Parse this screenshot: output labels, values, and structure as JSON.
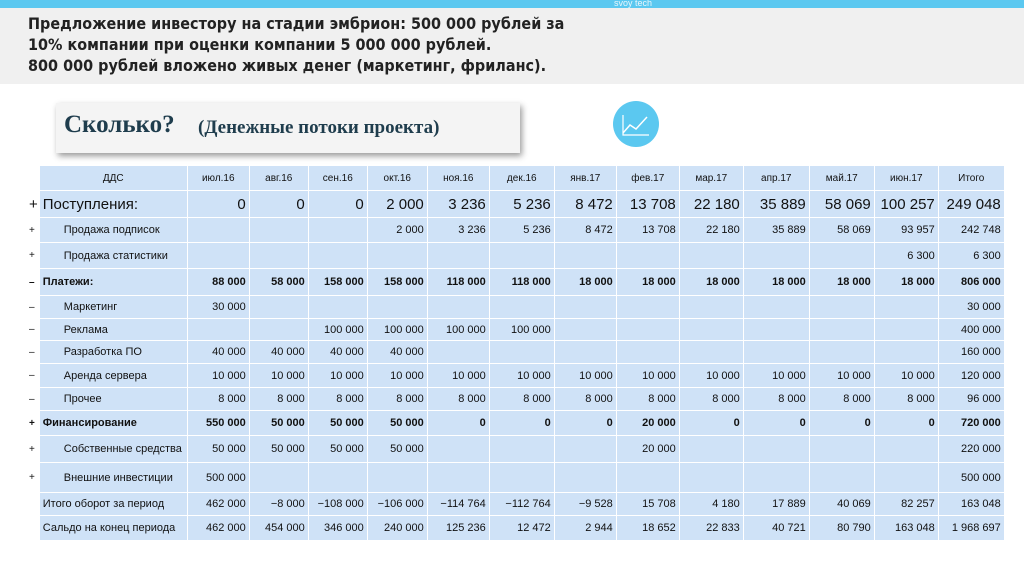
{
  "brand": "svoy tech",
  "header": {
    "lines": [
      "Предложение инвестору на стадии эмбрион: 500 000 рублей за",
      "10% компании при оценки компании 5 000 000 рублей.",
      "800 000 рублей вложено живых денег (маркетинг, фриланс)."
    ]
  },
  "subtitle": {
    "main": "Сколько?",
    "detail": "(Денежные потоки проекта)"
  },
  "table": {
    "columns": [
      "ДДС",
      "июл.16",
      "авг.16",
      "сен.16",
      "окт.16",
      "ноя.16",
      "дек.16",
      "янв.17",
      "фев.17",
      "мар.17",
      "апр.17",
      "май.17",
      "июн.17",
      "Итого"
    ],
    "rows": [
      {
        "sign": "+",
        "label": "Поступления:",
        "cells": [
          "0",
          "0",
          "0",
          "2 000",
          "3 236",
          "5 236",
          "8 472",
          "13 708",
          "22 180",
          "35 889",
          "58 069",
          "100 257",
          "249 048"
        ]
      },
      {
        "sign": "+",
        "label": "Продажа подписок",
        "cells": [
          null,
          null,
          null,
          "2 000",
          "3 236",
          "5 236",
          "8 472",
          "13 708",
          "22 180",
          "35 889",
          "58 069",
          "93 957",
          "242 748"
        ]
      },
      {
        "sign": "+",
        "label": "Продажа статистики",
        "cells": [
          null,
          null,
          null,
          null,
          null,
          null,
          null,
          null,
          null,
          null,
          null,
          "6 300",
          "6 300"
        ]
      },
      {
        "sign": "–",
        "label": "Платежи:",
        "cells": [
          "88 000",
          "58 000",
          "158 000",
          "158 000",
          "118 000",
          "118 000",
          "18 000",
          "18 000",
          "18 000",
          "18 000",
          "18 000",
          "18 000",
          "806 000"
        ]
      },
      {
        "sign": "–",
        "label": "Маркетинг",
        "cells": [
          "30 000",
          null,
          null,
          null,
          null,
          null,
          null,
          null,
          null,
          null,
          null,
          null,
          "30 000"
        ]
      },
      {
        "sign": "–",
        "label": "Реклама",
        "cells": [
          null,
          null,
          "100 000",
          "100 000",
          "100 000",
          "100 000",
          null,
          null,
          null,
          null,
          null,
          null,
          "400 000"
        ]
      },
      {
        "sign": "–",
        "label": "Разработка ПО",
        "cells": [
          "40 000",
          "40 000",
          "40 000",
          "40 000",
          null,
          null,
          null,
          null,
          null,
          null,
          null,
          null,
          "160 000"
        ]
      },
      {
        "sign": "–",
        "label": "Аренда сервера",
        "cells": [
          "10 000",
          "10 000",
          "10 000",
          "10 000",
          "10 000",
          "10 000",
          "10 000",
          "10 000",
          "10 000",
          "10 000",
          "10 000",
          "10 000",
          "120 000"
        ]
      },
      {
        "sign": "–",
        "label": "Прочее",
        "cells": [
          "8 000",
          "8 000",
          "8 000",
          "8 000",
          "8 000",
          "8 000",
          "8 000",
          "8 000",
          "8 000",
          "8 000",
          "8 000",
          "8 000",
          "96 000"
        ]
      },
      {
        "sign": "+",
        "label": "Финансирование",
        "cells": [
          "550 000",
          "50 000",
          "50 000",
          "50 000",
          "0",
          "0",
          "0",
          "20 000",
          "0",
          "0",
          "0",
          "0",
          "720 000"
        ]
      },
      {
        "sign": "+",
        "label": "Собственные средства",
        "cells": [
          "50 000",
          "50 000",
          "50 000",
          "50 000",
          null,
          null,
          null,
          "20 000",
          null,
          null,
          null,
          null,
          "220 000"
        ]
      },
      {
        "sign": "+",
        "label": "Внешние инвестиции",
        "cells": [
          "500 000",
          null,
          null,
          null,
          null,
          null,
          null,
          null,
          null,
          null,
          null,
          null,
          "500 000"
        ]
      },
      {
        "sign": null,
        "label": "Итого оборот за период",
        "cells": [
          "462 000",
          "−8 000",
          "−108 000",
          "−106 000",
          "−114 764",
          "−112 764",
          "−9 528",
          "15 708",
          "4 180",
          "17 889",
          "40 069",
          "82 257",
          "163 048"
        ]
      },
      {
        "sign": null,
        "label": "Сальдо на конец периода",
        "cells": [
          "462 000",
          "454 000",
          "346 000",
          "240 000",
          "125 236",
          "12 472",
          "2 944",
          "18 652",
          "22 833",
          "40 721",
          "80 790",
          "163 048",
          "1 968 697"
        ]
      }
    ]
  }
}
